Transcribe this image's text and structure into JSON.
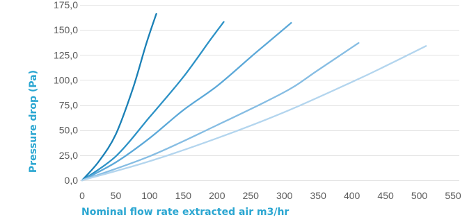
{
  "chart_data": {
    "type": "line",
    "xlabel": "Nominal flow rate extracted air m3/hr",
    "ylabel": "Pressure drop (Pa)",
    "xlim": [
      0,
      550
    ],
    "ylim": [
      0,
      175
    ],
    "x_ticks": [
      "0",
      "50",
      "100",
      "150",
      "200",
      "250",
      "300",
      "350",
      "400",
      "450",
      "500",
      "550"
    ],
    "y_ticks": [
      "0,0",
      "25,0",
      "50,0",
      "75,0",
      "100,0",
      "125,0",
      "150,0",
      "175,0"
    ],
    "x_tick_values": [
      0,
      50,
      100,
      150,
      200,
      250,
      300,
      350,
      400,
      450,
      500,
      550
    ],
    "y_tick_values": [
      0,
      25,
      50,
      75,
      100,
      125,
      150,
      175
    ],
    "grid": "horizontal",
    "legend": "none",
    "axis_title_color": "#2aa6d1",
    "series": [
      {
        "color": "#1a80b6",
        "points": [
          [
            0,
            0
          ],
          [
            25,
            19
          ],
          [
            50,
            46
          ],
          [
            75,
            91
          ],
          [
            95,
            136
          ],
          [
            110,
            166
          ]
        ]
      },
      {
        "color": "#2d92c6",
        "points": [
          [
            0,
            0
          ],
          [
            50,
            24
          ],
          [
            100,
            63
          ],
          [
            150,
            103
          ],
          [
            190,
            140
          ],
          [
            210,
            158
          ]
        ]
      },
      {
        "color": "#5ba8d8",
        "points": [
          [
            0,
            0
          ],
          [
            50,
            18
          ],
          [
            100,
            42
          ],
          [
            150,
            70
          ],
          [
            200,
            94
          ],
          [
            250,
            123
          ],
          [
            280,
            140
          ],
          [
            310,
            157
          ]
        ]
      },
      {
        "color": "#86bde3",
        "points": [
          [
            0,
            0
          ],
          [
            100,
            24
          ],
          [
            200,
            55
          ],
          [
            300,
            88
          ],
          [
            350,
            110
          ],
          [
            410,
            137
          ]
        ]
      },
      {
        "color": "#b3d5ee",
        "points": [
          [
            0,
            0
          ],
          [
            100,
            19
          ],
          [
            200,
            42
          ],
          [
            300,
            68
          ],
          [
            400,
            98
          ],
          [
            450,
            114
          ],
          [
            510,
            134
          ]
        ]
      }
    ]
  }
}
